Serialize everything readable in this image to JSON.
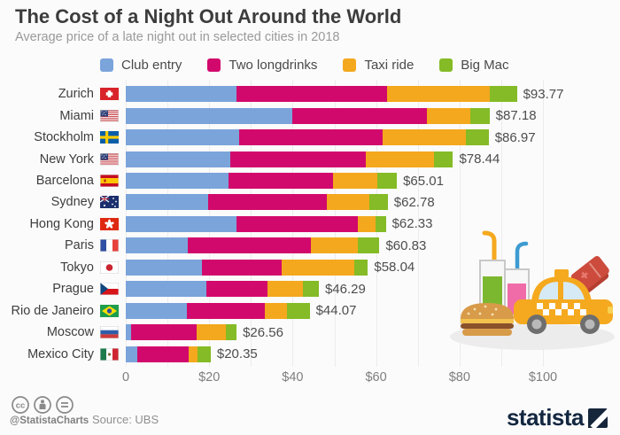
{
  "chart_data": {
    "type": "bar",
    "stacked": true,
    "horizontal": true,
    "title": "The Cost of a Night Out Around the World",
    "subtitle": "Average price of a late night out in selected cities in 2018",
    "unit": "USD",
    "grid": true,
    "legend_position": "top",
    "xlim": [
      0,
      100
    ],
    "x_ticks": [
      {
        "label": "0",
        "value": 0
      },
      {
        "label": "$20",
        "value": 20
      },
      {
        "label": "$40",
        "value": 40
      },
      {
        "label": "$60",
        "value": 60
      },
      {
        "label": "$80",
        "value": 80
      },
      {
        "label": "$100",
        "value": 100
      }
    ],
    "categories": [
      "Zurich",
      "Miami",
      "Stockholm",
      "New York",
      "Barcelona",
      "Sydney",
      "Hong Kong",
      "Paris",
      "Tokyo",
      "Prague",
      "Rio de Janeiro",
      "Moscow",
      "Mexico City"
    ],
    "flags": [
      "switzerland",
      "usa",
      "sweden",
      "usa",
      "spain",
      "australia",
      "hongkong",
      "france",
      "japan",
      "czech",
      "brazil",
      "russia",
      "mexico"
    ],
    "totals": [
      93.77,
      87.18,
      86.97,
      78.44,
      65.01,
      62.78,
      62.33,
      60.83,
      58.04,
      46.29,
      44.07,
      26.56,
      20.35
    ],
    "total_labels": [
      "$93.77",
      "$87.18",
      "$86.97",
      "$78.44",
      "$65.01",
      "$62.78",
      "$62.33",
      "$60.83",
      "$58.04",
      "$46.29",
      "$44.07",
      "$26.56",
      "$20.35"
    ],
    "series": [
      {
        "name": "Club entry",
        "color": "#7BA4DB",
        "values": [
          26.45,
          40.0,
          27.2,
          25.1,
          24.7,
          19.8,
          26.6,
          14.9,
          18.3,
          19.3,
          14.6,
          1.3,
          2.8
        ]
      },
      {
        "name": "Two longdrinks",
        "color": "#D2096C",
        "values": [
          36.2,
          32.1,
          34.45,
          32.35,
          24.95,
          28.4,
          29.1,
          29.4,
          19.15,
          14.7,
          18.8,
          15.7,
          12.2
        ]
      },
      {
        "name": "Taxi ride",
        "color": "#F4A81D",
        "values": [
          24.55,
          10.48,
          19.8,
          16.39,
          10.66,
          10.15,
          4.18,
          11.3,
          17.4,
          8.5,
          5.15,
          7.0,
          2.15
        ]
      },
      {
        "name": "Big Mac",
        "color": "#84BB26",
        "values": [
          6.57,
          4.6,
          5.52,
          4.6,
          4.7,
          4.43,
          2.45,
          5.23,
          3.19,
          3.79,
          5.52,
          2.56,
          3.2
        ]
      }
    ]
  },
  "footer": {
    "attribution_handle": "@StatistaCharts",
    "source": "Source: UBS",
    "brand": "statista"
  }
}
